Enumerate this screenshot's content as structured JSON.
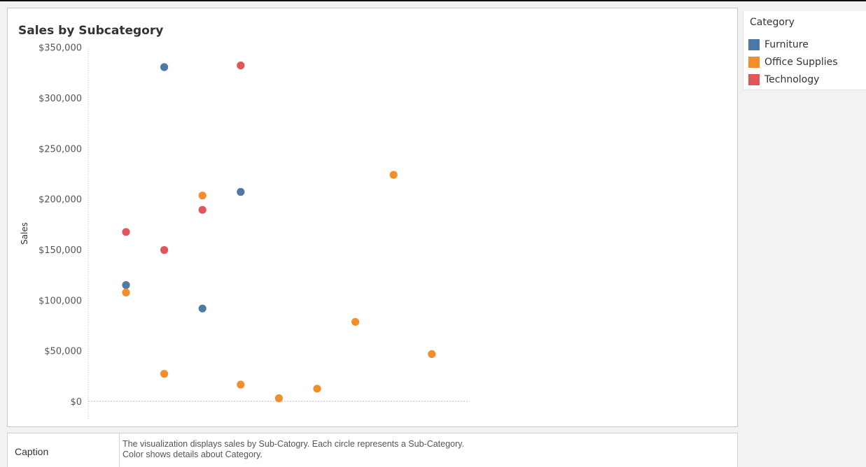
{
  "chart_data": {
    "type": "scatter",
    "title": "Sales by Subcategory",
    "ylabel": "Sales",
    "xlabel": "",
    "ylim": [
      -18000,
      350000
    ],
    "yticks": [
      0,
      50000,
      100000,
      150000,
      200000,
      250000,
      300000,
      350000
    ],
    "ytick_labels": [
      "$0",
      "$50,000",
      "$100,000",
      "$150,000",
      "$200,000",
      "$250,000",
      "$300,000",
      "$350,000"
    ],
    "x_slots": 9,
    "grid": false,
    "legend_title": "Category",
    "legend_position": "right",
    "series": [
      {
        "name": "Furniture",
        "color": "#4e79a7",
        "points": [
          {
            "x": 1,
            "y": 114880
          },
          {
            "x": 2,
            "y": 330350
          },
          {
            "x": 3,
            "y": 91700
          },
          {
            "x": 4,
            "y": 206970
          }
        ]
      },
      {
        "name": "Office Supplies",
        "color": "#f28e2b",
        "points": [
          {
            "x": 1,
            "y": 107530
          },
          {
            "x": 2,
            "y": 27120
          },
          {
            "x": 3,
            "y": 203410
          },
          {
            "x": 4,
            "y": 16480
          },
          {
            "x": 5,
            "y": 3020
          },
          {
            "x": 6,
            "y": 12490
          },
          {
            "x": 7,
            "y": 78480
          },
          {
            "x": 8,
            "y": 223840
          },
          {
            "x": 9,
            "y": 46670
          }
        ]
      },
      {
        "name": "Technology",
        "color": "#e15759",
        "points": [
          {
            "x": 1,
            "y": 167380
          },
          {
            "x": 2,
            "y": 149530
          },
          {
            "x": 3,
            "y": 189240
          },
          {
            "x": 4,
            "y": 331970
          }
        ]
      }
    ]
  },
  "caption": {
    "label": "Caption",
    "line1": "The visualization displays sales by Sub-Catogry. Each circle represents a Sub-Category.",
    "line2": "Color shows details about Category."
  }
}
